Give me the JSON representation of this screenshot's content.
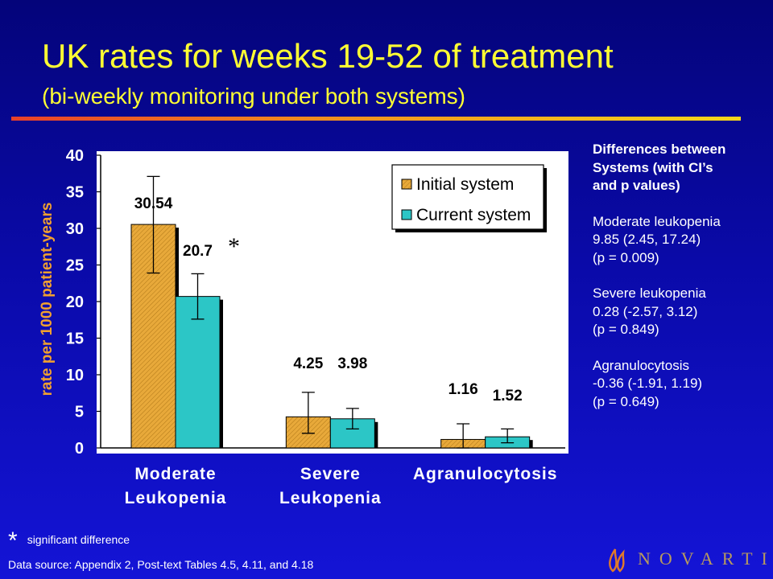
{
  "slide": {
    "title": "UK rates for weeks 19-52 of treatment",
    "subtitle": "(bi-weekly monitoring under both systems)",
    "significance_mark": "*",
    "significance_note": "significant difference",
    "source": "Data source: Appendix 2, Post-text Tables 4.5, 4.11, and 4.18",
    "logo_text": "NOVARTIS"
  },
  "side_panel": {
    "heading": [
      "Differences between",
      "Systems (with CI’s",
      "and p values)"
    ],
    "items": [
      {
        "name": "Moderate leukopenia",
        "estimate": "9.85 (2.45, 17.24)",
        "p": "(p = 0.009)"
      },
      {
        "name": "Severe leukopenia",
        "estimate": "0.28 (-2.57, 3.12)",
        "p": "(p = 0.849)"
      },
      {
        "name": "Agranulocytosis",
        "estimate": "-0.36 (-1.91, 1.19)",
        "p": "(p = 0.649)"
      }
    ]
  },
  "chart_data": {
    "type": "bar",
    "title": "",
    "xlabel": "",
    "ylabel": "rate per 1000 patient-years",
    "ylim": [
      0,
      40
    ],
    "yticks": [
      0,
      5,
      10,
      15,
      20,
      25,
      30,
      35,
      40
    ],
    "grid": false,
    "legend_position": "top-right",
    "categories": [
      [
        "Moderate",
        "Leukopenia"
      ],
      [
        "Severe",
        "Leukopenia"
      ],
      [
        "Agranulocytosis"
      ]
    ],
    "series": [
      {
        "name": "Initial system",
        "color": "#e8a93a",
        "values": [
          30.54,
          4.25,
          1.16
        ],
        "labels": [
          "30.54",
          "4.25",
          "1.16"
        ],
        "error_low": [
          23.9,
          2.0,
          0.0
        ],
        "error_high": [
          37.1,
          7.6,
          3.3
        ]
      },
      {
        "name": "Current system",
        "color": "#2cc6c6",
        "values": [
          20.7,
          3.98,
          1.52
        ],
        "labels": [
          "20.7",
          "3.98",
          "1.52"
        ],
        "error_low": [
          17.6,
          2.6,
          0.7
        ],
        "error_high": [
          23.8,
          5.4,
          2.6
        ]
      }
    ],
    "annotations": [
      {
        "text": "*",
        "category": 0,
        "series": 1
      }
    ]
  },
  "colors": {
    "title": "#ffff33",
    "ylabel": "#f0a030",
    "plot_bg": "#ffffff",
    "initial_bar": "#e8a93a",
    "current_bar": "#2cc6c6",
    "logo": "#b89a5e"
  }
}
